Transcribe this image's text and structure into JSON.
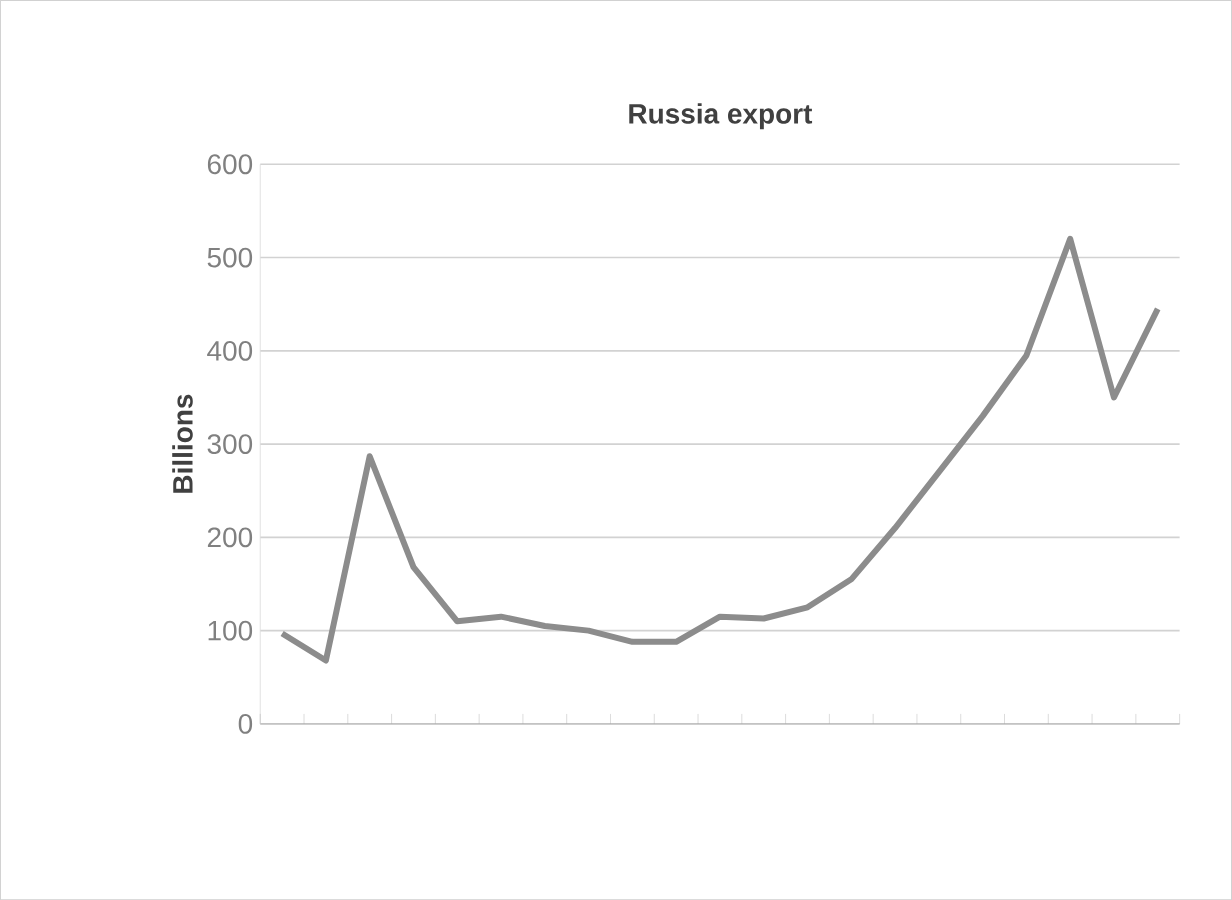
{
  "chart_data": {
    "type": "line",
    "title": "Russia export",
    "ylabel": "Billions",
    "categories": [
      null,
      null,
      null,
      null,
      null,
      null,
      null,
      null,
      null,
      null,
      null,
      null,
      null,
      null,
      null,
      null,
      null,
      null,
      null,
      null,
      null
    ],
    "values": [
      97,
      68,
      287,
      168,
      110,
      115,
      105,
      100,
      88,
      88,
      115,
      113,
      125,
      155,
      210,
      270,
      330,
      395,
      520,
      350,
      445
    ],
    "color": "#8c8c8c",
    "ylim": [
      0,
      600
    ],
    "yticks": [
      0,
      100,
      200,
      300,
      400,
      500,
      600
    ],
    "grid": "y",
    "marker": "none",
    "line_style": "solid"
  }
}
